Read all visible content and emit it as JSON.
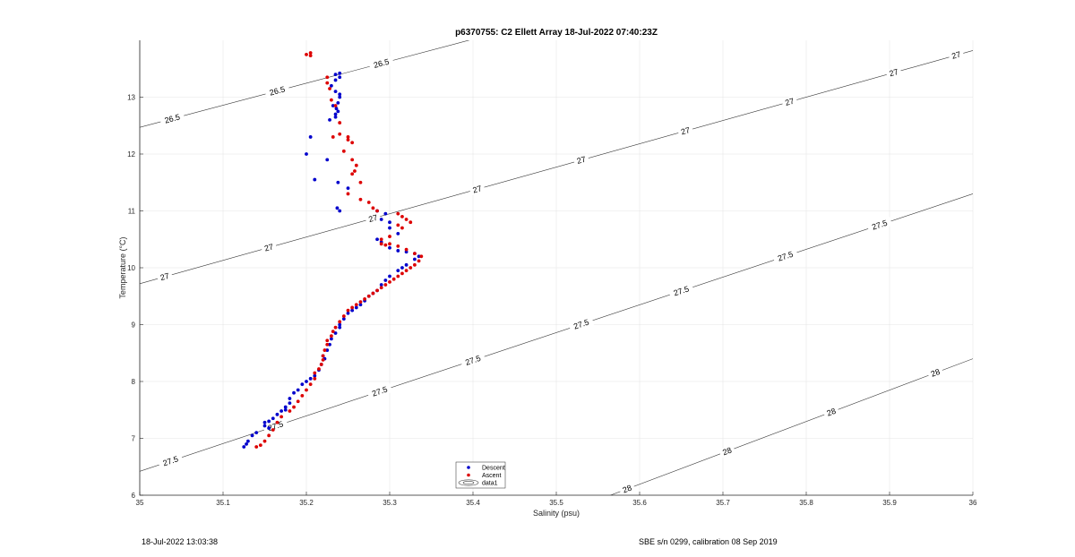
{
  "chart_data": {
    "type": "scatter",
    "title": "p6370755: C2 Ellett Array 18-Jul-2022 07:40:23Z",
    "xlabel": "Salinity (psu)",
    "ylabel": "Temperature (°C)",
    "xlim": [
      35,
      36
    ],
    "ylim": [
      6,
      14
    ],
    "xticks": [
      "35",
      "35.1",
      "35.2",
      "35.3",
      "35.4",
      "35.5",
      "35.6",
      "35.7",
      "35.8",
      "35.9",
      "36"
    ],
    "yticks": [
      "6",
      "7",
      "8",
      "9",
      "10",
      "11",
      "12",
      "13"
    ],
    "grid": true,
    "legend_position": "bottom-center",
    "series": [
      {
        "name": "Descent",
        "color": "#0000cc",
        "x": [
          35.235,
          35.24,
          35.23,
          35.235,
          35.24,
          35.232,
          35.236,
          35.238,
          35.228,
          35.235,
          35.24,
          35.24,
          35.238,
          35.235,
          35.235,
          35.205,
          35.2,
          35.225,
          35.21,
          35.238,
          35.25,
          35.237,
          35.24,
          35.285,
          35.295,
          35.29,
          35.3,
          35.3,
          35.31,
          35.285,
          35.29,
          35.3,
          35.31,
          35.32,
          35.33,
          35.335,
          35.33,
          35.32,
          35.315,
          35.31,
          35.3,
          35.295,
          35.29,
          35.285,
          35.28,
          35.275,
          35.27,
          35.265,
          35.26,
          35.255,
          35.25,
          35.245,
          35.24,
          35.24,
          35.235,
          35.23,
          35.228,
          35.225,
          35.22,
          35.222,
          35.218,
          35.215,
          35.21,
          35.205,
          35.2,
          35.195,
          35.19,
          35.185,
          35.18,
          35.18,
          35.175,
          35.175,
          35.17,
          35.165,
          35.16,
          35.155,
          35.15,
          35.15,
          35.155,
          35.14,
          35.135,
          35.13,
          35.128,
          35.125
        ],
        "y": [
          13.4,
          13.42,
          13.2,
          13.1,
          13.0,
          12.85,
          12.8,
          12.75,
          12.6,
          13.3,
          13.35,
          13.05,
          12.9,
          12.7,
          12.65,
          12.3,
          12.0,
          11.9,
          11.55,
          11.5,
          11.4,
          11.05,
          11.0,
          11.0,
          10.95,
          10.85,
          10.8,
          10.7,
          10.6,
          10.5,
          10.45,
          10.35,
          10.3,
          10.28,
          10.25,
          10.2,
          10.15,
          10.05,
          10.0,
          9.95,
          9.85,
          9.78,
          9.7,
          9.6,
          9.55,
          9.5,
          9.42,
          9.35,
          9.3,
          9.25,
          9.2,
          9.1,
          9.0,
          8.95,
          8.85,
          8.75,
          8.65,
          8.55,
          8.45,
          8.4,
          8.3,
          8.2,
          8.1,
          8.05,
          8.0,
          7.95,
          7.85,
          7.8,
          7.7,
          7.62,
          7.55,
          7.5,
          7.48,
          7.42,
          7.35,
          7.3,
          7.28,
          7.22,
          7.18,
          7.1,
          7.05,
          6.95,
          6.9,
          6.85
        ]
      },
      {
        "name": "Ascent",
        "color": "#dd0000",
        "x": [
          35.2,
          35.205,
          35.205,
          35.225,
          35.225,
          35.228,
          35.23,
          35.235,
          35.24,
          35.232,
          35.24,
          35.25,
          35.25,
          35.255,
          35.245,
          35.255,
          35.26,
          35.258,
          35.255,
          35.25,
          35.265,
          35.265,
          35.275,
          35.28,
          35.285,
          35.31,
          35.315,
          35.32,
          35.325,
          35.31,
          35.315,
          35.3,
          35.29,
          35.29,
          35.295,
          35.3,
          35.31,
          35.32,
          35.33,
          35.338,
          35.335,
          35.33,
          35.325,
          35.32,
          35.315,
          35.31,
          35.305,
          35.3,
          35.295,
          35.29,
          35.285,
          35.28,
          35.275,
          35.27,
          35.265,
          35.26,
          35.255,
          35.25,
          35.245,
          35.24,
          35.235,
          35.232,
          35.23,
          35.225,
          35.225,
          35.222,
          35.22,
          35.22,
          35.218,
          35.215,
          35.21,
          35.21,
          35.205,
          35.2,
          35.195,
          35.19,
          35.185,
          35.18,
          35.17,
          35.165,
          35.16,
          35.155,
          35.15,
          35.145,
          35.14
        ],
        "y": [
          13.75,
          13.78,
          13.73,
          13.35,
          13.25,
          13.15,
          12.95,
          12.85,
          12.55,
          12.3,
          12.35,
          12.3,
          12.25,
          12.2,
          12.05,
          11.9,
          11.8,
          11.7,
          11.65,
          11.3,
          11.5,
          11.2,
          11.15,
          11.05,
          11.0,
          10.95,
          10.9,
          10.85,
          10.8,
          10.75,
          10.7,
          10.55,
          10.5,
          10.42,
          10.4,
          10.42,
          10.38,
          10.32,
          10.25,
          10.2,
          10.12,
          10.05,
          10.0,
          9.95,
          9.9,
          9.85,
          9.8,
          9.75,
          9.7,
          9.65,
          9.6,
          9.55,
          9.5,
          9.45,
          9.4,
          9.35,
          9.3,
          9.25,
          9.15,
          9.05,
          8.95,
          8.88,
          8.8,
          8.72,
          8.65,
          8.55,
          8.45,
          8.38,
          8.3,
          8.22,
          8.15,
          8.05,
          7.95,
          7.85,
          7.75,
          7.65,
          7.55,
          7.48,
          7.38,
          7.28,
          7.15,
          7.05,
          6.95,
          6.88,
          6.85
        ]
      }
    ],
    "density_contours": [
      {
        "level": "26.5",
        "x": [
          35.0,
          35.4
        ],
        "y": [
          12.47,
          14.02
        ],
        "labels": [
          {
            "text": "26.5",
            "x": 35.039
          },
          {
            "text": "26.5",
            "x": 35.165
          },
          {
            "text": "26.5",
            "x": 35.29
          }
        ]
      },
      {
        "level": "27",
        "x": [
          35.0,
          36.0
        ],
        "y": [
          9.72,
          13.82
        ],
        "labels": [
          {
            "text": "27",
            "x": 35.03
          },
          {
            "text": "27",
            "x": 35.155
          },
          {
            "text": "27",
            "x": 35.28
          },
          {
            "text": "27",
            "x": 35.405
          },
          {
            "text": "27",
            "x": 35.53
          },
          {
            "text": "27",
            "x": 35.655
          },
          {
            "text": "27",
            "x": 35.78
          },
          {
            "text": "27",
            "x": 35.905
          },
          {
            "text": "27",
            "x": 35.98
          }
        ]
      },
      {
        "level": "27.5",
        "x": [
          35.0,
          36.0
        ],
        "y": [
          6.42,
          11.3
        ],
        "labels": [
          {
            "text": "27.5",
            "x": 35.037
          },
          {
            "text": "27.5",
            "x": 35.163
          },
          {
            "text": "27.5",
            "x": 35.288
          },
          {
            "text": "27.5",
            "x": 35.4
          },
          {
            "text": "27.5",
            "x": 35.53
          },
          {
            "text": "27.5",
            "x": 35.65
          },
          {
            "text": "27.5",
            "x": 35.775
          },
          {
            "text": "27.5",
            "x": 35.888
          }
        ]
      },
      {
        "level": "28",
        "x": [
          35.565,
          36.0
        ],
        "y": [
          6.0,
          8.4
        ],
        "labels": [
          {
            "text": "28",
            "x": 35.585
          },
          {
            "text": "28",
            "x": 35.705
          },
          {
            "text": "28",
            "x": 35.83
          },
          {
            "text": "28",
            "x": 35.955
          }
        ]
      }
    ],
    "contour_legend_label": "data1"
  },
  "footer": {
    "left": "18-Jul-2022 13:03:38",
    "right": "SBE s/n 0299, calibration 08 Sep 2019"
  }
}
